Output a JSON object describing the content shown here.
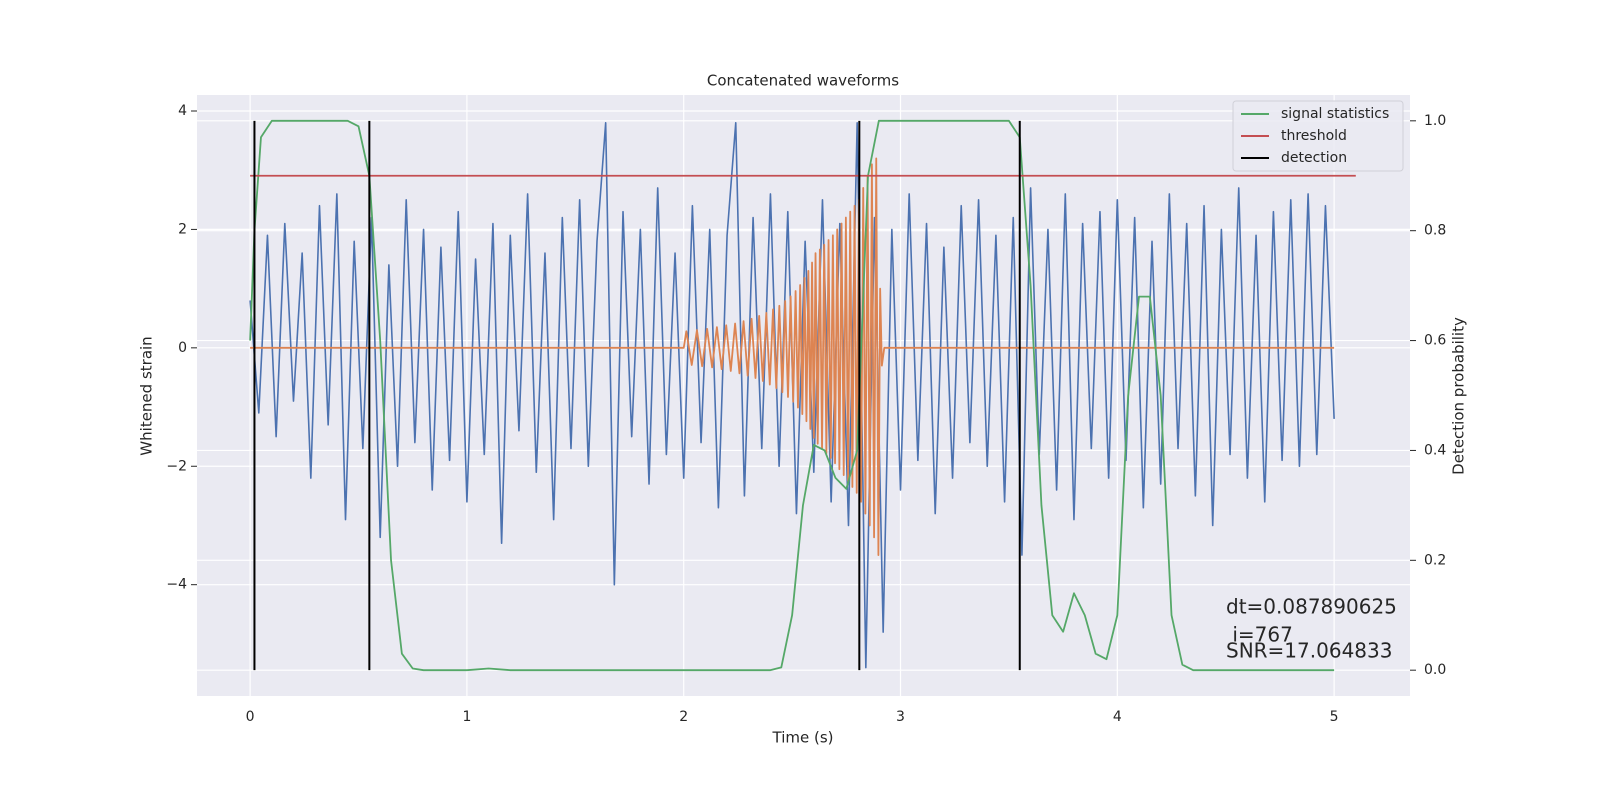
{
  "chart_data": {
    "type": "line",
    "title": "Concatenated waveforms",
    "xlabel": "Time (s)",
    "ylabel": "Whitened strain",
    "y2label": "Detection probability",
    "xlim": [
      -0.245,
      5.35
    ],
    "ylim": [
      -5.88,
      4.27
    ],
    "y2lim": [
      -0.047,
      1.047
    ],
    "xticks": [
      0,
      1,
      2,
      3,
      4,
      5
    ],
    "yticks": [
      {
        "value": -4,
        "label": "−4"
      },
      {
        "value": -2,
        "label": "−2"
      },
      0,
      2,
      4
    ],
    "y2ticks": [
      {
        "value": 0,
        "label": "0.0"
      },
      0.2,
      0.4,
      0.6,
      0.8,
      {
        "value": 1,
        "label": "1.0"
      }
    ],
    "grid": true,
    "legend": "upper right",
    "annotations": [
      "dt=0.087890625",
      " i=767",
      "SNR=17.064833"
    ],
    "series": [
      {
        "color": "#4c72b0",
        "x": [
          0,
          0.04,
          0.08,
          0.12,
          0.16,
          0.2,
          0.24,
          0.28,
          0.32,
          0.36,
          0.4,
          0.44,
          0.48,
          0.52,
          0.56,
          0.6,
          0.64,
          0.68,
          0.72,
          0.76,
          0.8,
          0.84,
          0.88,
          0.92,
          0.96,
          1,
          1.04,
          1.08,
          1.12,
          1.16,
          1.2,
          1.24,
          1.28,
          1.32,
          1.36,
          1.4,
          1.44,
          1.48,
          1.52,
          1.56,
          1.6,
          1.64,
          1.68,
          1.72,
          1.76,
          1.8,
          1.84,
          1.88,
          1.92,
          1.96,
          2,
          2.04,
          2.08,
          2.12,
          2.16,
          2.2,
          2.24,
          2.28,
          2.32,
          2.36,
          2.4,
          2.44,
          2.48,
          2.52,
          2.56,
          2.6,
          2.64,
          2.68,
          2.72,
          2.76,
          2.8,
          2.84,
          2.88,
          2.92,
          2.96,
          3,
          3.04,
          3.08,
          3.12,
          3.16,
          3.2,
          3.24,
          3.28,
          3.32,
          3.36,
          3.4,
          3.44,
          3.48,
          3.52,
          3.56,
          3.6,
          3.64,
          3.68,
          3.72,
          3.76,
          3.8,
          3.84,
          3.88,
          3.92,
          3.96,
          4,
          4.04,
          4.08,
          4.12,
          4.16,
          4.2,
          4.24,
          4.28,
          4.32,
          4.36,
          4.4,
          4.44,
          4.48,
          4.52,
          4.56,
          4.6,
          4.64,
          4.68,
          4.72,
          4.76,
          4.8,
          4.84,
          4.88,
          4.92,
          4.96,
          5
        ],
        "values": [
          0.8,
          -1.1,
          1.9,
          -1.5,
          2.1,
          -0.9,
          1.6,
          -2.2,
          2.4,
          -1.3,
          2.6,
          -2.9,
          1.8,
          -1.7,
          2.2,
          -3.2,
          1.4,
          -2.0,
          2.5,
          -1.6,
          2.0,
          -2.4,
          1.7,
          -1.9,
          2.3,
          -2.6,
          1.5,
          -1.8,
          2.1,
          -3.3,
          1.9,
          -1.4,
          2.6,
          -2.1,
          1.6,
          -2.9,
          2.2,
          -1.7,
          2.5,
          -2.0,
          1.8,
          3.8,
          -4.0,
          2.3,
          -1.5,
          2.0,
          -2.3,
          2.7,
          -1.8,
          1.6,
          -2.2,
          2.4,
          -1.6,
          2.0,
          -2.7,
          1.9,
          3.8,
          -2.5,
          2.2,
          -1.7,
          2.6,
          -2.0,
          2.3,
          -2.8,
          1.8,
          -2.1,
          2.5,
          -2.6,
          2.1,
          -3.0,
          3.8,
          -5.4,
          2.2,
          -4.8,
          2.0,
          -2.4,
          2.6,
          -1.9,
          2.1,
          -2.8,
          1.7,
          -2.2,
          2.4,
          -1.6,
          2.5,
          -2.0,
          1.9,
          -2.6,
          2.2,
          -3.5,
          2.7,
          -1.8,
          2.0,
          -2.4,
          2.6,
          -2.9,
          2.1,
          -1.7,
          2.3,
          -2.2,
          2.5,
          -1.9,
          2.2,
          -2.7,
          1.8,
          -2.3,
          2.6,
          -1.7,
          2.1,
          -2.5,
          2.4,
          -3.0,
          2.0,
          -1.8,
          2.7,
          -2.2,
          1.9,
          -2.6,
          2.3,
          -1.9,
          2.5,
          -2.0,
          2.6,
          -1.8,
          2.4,
          -1.2
        ]
      },
      {
        "color": "#dd8452",
        "x": [
          0,
          2.0,
          2.012,
          2.037,
          2.061,
          2.085,
          2.108,
          2.131,
          2.153,
          2.175,
          2.196,
          2.217,
          2.237,
          2.257,
          2.276,
          2.295,
          2.313,
          2.331,
          2.348,
          2.365,
          2.381,
          2.397,
          2.412,
          2.427,
          2.441,
          2.455,
          2.468,
          2.481,
          2.493,
          2.505,
          2.516,
          2.527,
          2.537,
          2.547,
          2.557,
          2.566,
          2.575,
          2.584,
          2.592,
          2.6,
          2.608,
          2.618,
          2.628,
          2.638,
          2.648,
          2.658,
          2.668,
          2.678,
          2.688,
          2.698,
          2.708,
          2.718,
          2.728,
          2.738,
          2.748,
          2.758,
          2.768,
          2.778,
          2.788,
          2.798,
          2.808,
          2.818,
          2.828,
          2.838,
          2.848,
          2.858,
          2.868,
          2.878,
          2.888,
          2.898,
          2.906,
          2.914,
          2.925,
          5.0
        ],
        "values": [
          0,
          0,
          0.28,
          -0.29,
          0.3,
          -0.31,
          0.32,
          -0.33,
          0.35,
          -0.36,
          0.38,
          -0.39,
          0.41,
          -0.43,
          0.45,
          -0.47,
          0.49,
          -0.51,
          0.54,
          -0.56,
          0.59,
          -0.62,
          0.65,
          -0.68,
          0.71,
          -0.75,
          0.79,
          -0.83,
          0.87,
          -0.91,
          0.96,
          -1.01,
          1.06,
          -1.12,
          1.18,
          -1.24,
          1.3,
          -1.37,
          1.44,
          -1.52,
          1.6,
          -1.62,
          1.66,
          -1.7,
          1.74,
          -1.78,
          1.82,
          -1.86,
          1.9,
          -1.95,
          2.0,
          -2.05,
          2.1,
          -2.15,
          2.2,
          -2.25,
          2.3,
          -2.35,
          2.4,
          -2.45,
          2.5,
          -2.6,
          2.7,
          -2.8,
          2.9,
          -3.0,
          3.1,
          -3.2,
          3.2,
          -3.5,
          1.0,
          -0.3,
          0,
          0
        ]
      },
      {
        "name": "signal statistics",
        "color": "#55a868",
        "axis": "y2",
        "x": [
          0,
          0.02,
          0.05,
          0.1,
          0.45,
          0.5,
          0.55,
          0.6,
          0.65,
          0.7,
          0.75,
          0.8,
          1.0,
          1.1,
          1.2,
          2.4,
          2.45,
          2.5,
          2.55,
          2.6,
          2.65,
          2.7,
          2.75,
          2.8,
          2.85,
          2.9,
          3.5,
          3.55,
          3.6,
          3.65,
          3.7,
          3.75,
          3.8,
          3.85,
          3.9,
          3.95,
          4.0,
          4.05,
          4.1,
          4.15,
          4.2,
          4.25,
          4.3,
          4.35,
          5.0
        ],
        "values": [
          0.6,
          0.8,
          0.97,
          1.0,
          1.0,
          0.99,
          0.9,
          0.6,
          0.2,
          0.03,
          0.003,
          0.0,
          0.0,
          0.003,
          0.0,
          0.0,
          0.005,
          0.1,
          0.3,
          0.41,
          0.4,
          0.35,
          0.33,
          0.4,
          0.9,
          1.0,
          1.0,
          0.97,
          0.7,
          0.3,
          0.1,
          0.07,
          0.14,
          0.1,
          0.03,
          0.02,
          0.1,
          0.5,
          0.68,
          0.68,
          0.5,
          0.1,
          0.01,
          0.0,
          0.0
        ]
      },
      {
        "name": "threshold",
        "color": "#c44e52",
        "axis": "y2",
        "x": [
          0,
          5.1
        ],
        "values": [
          0.9,
          0.9
        ]
      },
      {
        "name": "detection",
        "type": "vline",
        "color": "#000000",
        "axis": "y2",
        "x": [
          0.02,
          0.55,
          2.81,
          3.55
        ],
        "span": [
          0,
          1
        ]
      }
    ]
  }
}
